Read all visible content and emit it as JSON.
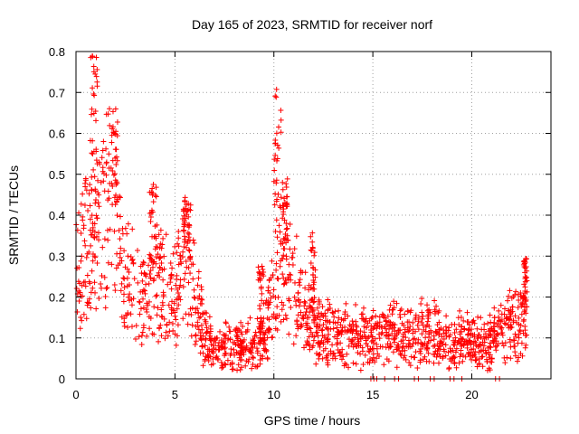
{
  "chart_data": {
    "type": "scatter",
    "title": "Day 165 of 2023, SRMTID for receiver norf",
    "xlabel": "GPS time / hours",
    "ylabel": "SRMTID / TECUs",
    "xlim": [
      0,
      24
    ],
    "ylim": [
      0,
      0.8
    ],
    "x_ticks": [
      0,
      5,
      10,
      15,
      20
    ],
    "y_ticks": [
      0,
      0.1,
      0.2,
      0.3,
      0.4,
      0.5,
      0.6,
      0.7,
      0.8
    ],
    "x_tick_labels": [
      "0",
      "5",
      "10",
      "15",
      "20"
    ],
    "y_tick_labels": [
      "0",
      "0.1",
      "0.2",
      "0.3",
      "0.4",
      "0.5",
      "0.6",
      "0.7",
      "0.8"
    ],
    "grid": true,
    "marker": "+",
    "marker_color": "#ff0000",
    "trend": [
      [
        0.0,
        0.26
      ],
      [
        0.4,
        0.32
      ],
      [
        0.8,
        0.35
      ],
      [
        1.2,
        0.38
      ],
      [
        1.6,
        0.42
      ],
      [
        2.0,
        0.4
      ],
      [
        2.4,
        0.27
      ],
      [
        3.0,
        0.22
      ],
      [
        3.5,
        0.2
      ],
      [
        4.0,
        0.24
      ],
      [
        4.5,
        0.22
      ],
      [
        5.0,
        0.2
      ],
      [
        5.5,
        0.28
      ],
      [
        5.8,
        0.26
      ],
      [
        6.2,
        0.16
      ],
      [
        6.6,
        0.1
      ],
      [
        7.2,
        0.08
      ],
      [
        8.0,
        0.07
      ],
      [
        9.0,
        0.08
      ],
      [
        9.6,
        0.11
      ],
      [
        10.0,
        0.2
      ],
      [
        10.3,
        0.3
      ],
      [
        10.6,
        0.26
      ],
      [
        11.0,
        0.23
      ],
      [
        11.5,
        0.17
      ],
      [
        12.0,
        0.13
      ],
      [
        13.0,
        0.1
      ],
      [
        14.0,
        0.1
      ],
      [
        15.0,
        0.09
      ],
      [
        15.5,
        0.1
      ],
      [
        16.0,
        0.13
      ],
      [
        16.5,
        0.11
      ],
      [
        17.0,
        0.1
      ],
      [
        17.5,
        0.12
      ],
      [
        18.0,
        0.11
      ],
      [
        18.5,
        0.09
      ],
      [
        19.0,
        0.08
      ],
      [
        19.5,
        0.1
      ],
      [
        20.0,
        0.09
      ],
      [
        20.5,
        0.08
      ],
      [
        21.0,
        0.1
      ],
      [
        21.5,
        0.12
      ],
      [
        22.0,
        0.13
      ],
      [
        22.5,
        0.14
      ],
      [
        22.8,
        0.15
      ]
    ],
    "spikes": [
      {
        "x_start": 0.7,
        "x_end": 1.1,
        "peak": 0.79
      },
      {
        "x_start": 1.6,
        "x_end": 2.1,
        "peak": 0.68
      },
      {
        "x_start": 3.7,
        "x_end": 4.1,
        "peak": 0.48
      },
      {
        "x_start": 5.4,
        "x_end": 5.8,
        "peak": 0.44
      },
      {
        "x_start": 10.0,
        "x_end": 10.4,
        "peak": 0.74
      },
      {
        "x_start": 10.4,
        "x_end": 10.7,
        "peak": 0.49
      },
      {
        "x_start": 11.8,
        "x_end": 12.1,
        "peak": 0.36
      },
      {
        "x_start": 9.2,
        "x_end": 9.5,
        "peak": 0.28
      },
      {
        "x_start": 22.6,
        "x_end": 22.8,
        "peak": 0.3
      }
    ],
    "zero_points_x": [
      14.9,
      15.05,
      15.2,
      15.6,
      16.1,
      16.3,
      17.1,
      17.3,
      17.9,
      18.1,
      18.9,
      19.1,
      19.5,
      21.2,
      21.4
    ],
    "dense_hours": [
      0,
      22.8
    ],
    "spread": 0.06,
    "random_seed": 165
  }
}
